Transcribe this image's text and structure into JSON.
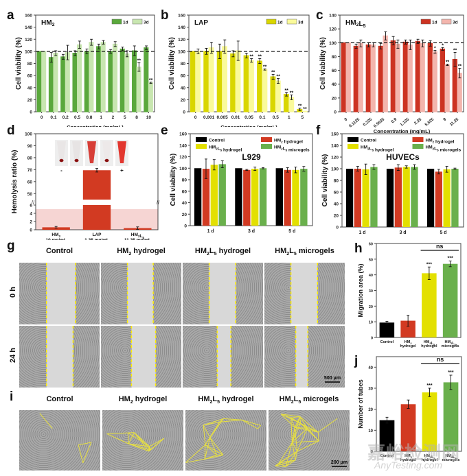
{
  "panel_letters": {
    "a": "a",
    "b": "b",
    "c": "c",
    "d": "d",
    "e": "e",
    "f": "f",
    "g": "g",
    "h": "h",
    "i": "i",
    "j": "j"
  },
  "colors": {
    "green_dark": "#5aa83c",
    "green_light": "#c8e6b0",
    "yellow_dark": "#d9d600",
    "yellow_light": "#fafa9a",
    "red_dark": "#cc3322",
    "red_light": "#f3b5ad",
    "black": "#000000",
    "red": "#d23a22",
    "yellow": "#e3e000",
    "green": "#6ab04c",
    "dash_yellow": "#ffee00"
  },
  "chart_data": [
    {
      "id": "a",
      "type": "bar",
      "title": "HM₂",
      "xlabel": "Concentration (mg/mL)",
      "ylabel": "Cell viability (%)",
      "ylim": [
        0,
        160
      ],
      "yticks": [
        0,
        20,
        40,
        60,
        80,
        100,
        120,
        140,
        160
      ],
      "reference_line": 100,
      "categories": [
        "0",
        "0.1",
        "0.2",
        "0.5",
        "0.8",
        "1",
        "2",
        "5",
        "8",
        "10"
      ],
      "series": [
        {
          "name": "1d",
          "values": [
            100,
            90,
            91,
            97,
            100,
            108,
            100,
            104,
            101,
            106
          ],
          "errors": [
            0,
            8,
            4,
            4,
            4,
            4,
            3,
            3,
            8,
            3
          ]
        },
        {
          "name": "3d",
          "values": [
            100,
            97,
            98,
            111,
            115,
            115,
            112,
            96,
            74,
            48
          ],
          "errors": [
            0,
            4,
            12,
            6,
            5,
            3,
            4,
            5,
            7,
            1
          ]
        }
      ],
      "annotations": [
        {
          "category": "8",
          "series": "3d",
          "text": "**"
        },
        {
          "category": "10",
          "series": "3d",
          "text": "**"
        }
      ],
      "legend": "top-right"
    },
    {
      "id": "b",
      "type": "bar",
      "title": "LAP",
      "xlabel": "Concentration (mg/mL)",
      "ylabel": "Cell viability (%)",
      "ylim": [
        0,
        160
      ],
      "yticks": [
        0,
        20,
        40,
        60,
        80,
        100,
        120,
        140,
        160
      ],
      "reference_line": 100,
      "categories": [
        "0",
        "0.001",
        "0.005",
        "0.01",
        "0.05",
        "0.1",
        "0.5",
        "1",
        "5"
      ],
      "series": [
        {
          "name": "1d",
          "values": [
            100,
            100,
            100,
            96,
            93,
            84,
            58,
            29,
            4
          ],
          "errors": [
            0,
            5,
            12,
            5,
            4,
            4,
            4,
            3,
            2
          ]
        },
        {
          "name": "3d",
          "values": [
            100,
            106,
            108,
            101,
            85,
            70,
            51,
            24,
            1
          ],
          "errors": [
            4,
            9,
            11,
            16,
            3,
            1,
            4,
            4,
            0
          ]
        }
      ],
      "annotations": [
        {
          "category": "0.05",
          "series": "3d",
          "text": "**"
        },
        {
          "category": "0.1",
          "series": "1d",
          "text": "**"
        },
        {
          "category": "0.1",
          "series": "3d",
          "text": "**"
        },
        {
          "category": "0.5",
          "series": "1d",
          "text": "**"
        },
        {
          "category": "0.5",
          "series": "3d",
          "text": "**"
        },
        {
          "category": "1",
          "series": "1d",
          "text": "**"
        },
        {
          "category": "1",
          "series": "3d",
          "text": "**"
        },
        {
          "category": "5",
          "series": "1d",
          "text": "**"
        },
        {
          "category": "5",
          "series": "3d",
          "text": "**"
        }
      ],
      "legend": "top-right"
    },
    {
      "id": "c",
      "type": "bar",
      "title": "HM₂L₅",
      "xlabel": "Concentration (mg/mL)",
      "ylabel": "Cell viability (%)",
      "ylim": [
        0,
        140
      ],
      "yticks": [
        0,
        20,
        40,
        60,
        80,
        100,
        120,
        140
      ],
      "reference_line": 100,
      "categories": [
        "0",
        "0.1125",
        "0.225",
        "0.5625",
        "0.9",
        "1.125",
        "2.25",
        "5.625",
        "9",
        "11.25"
      ],
      "series": [
        {
          "name": "1d",
          "values": [
            100,
            95,
            97,
            95,
            103,
            101,
            102,
            99,
            91,
            76
          ],
          "errors": [
            0,
            3,
            3,
            4,
            6,
            3,
            3,
            4,
            2,
            10
          ]
        },
        {
          "name": "3d",
          "values": [
            100,
            99,
            97,
            110,
            98,
            97,
            99,
            87,
            68,
            56
          ],
          "errors": [
            0,
            5,
            3,
            6,
            6,
            7,
            5,
            2,
            1,
            7
          ]
        }
      ],
      "annotations": [
        {
          "category": "5.625",
          "series": "3d",
          "text": "*"
        },
        {
          "category": "9",
          "series": "1d",
          "text": "*"
        },
        {
          "category": "9",
          "series": "3d",
          "text": "**"
        },
        {
          "category": "11.25",
          "series": "1d",
          "text": "**"
        },
        {
          "category": "11.25",
          "series": "3d",
          "text": "**"
        }
      ],
      "legend": "top-right"
    },
    {
      "id": "d",
      "type": "bar",
      "title": "",
      "xlabel": "",
      "ylabel": "Hemolysis ratio (%)",
      "ylim_lower": [
        0,
        6
      ],
      "ylim_upper": [
        45,
        100
      ],
      "yticks_lower": [
        0,
        2,
        4,
        6
      ],
      "yticks_upper": [
        50,
        60,
        70,
        80,
        90,
        100
      ],
      "categories": [
        "HM₂\n10 mg/mL",
        "LAP\n1.25 mg/mL",
        "HM₂L₅\n11.25 mg/mL"
      ],
      "values": [
        0.6,
        69.5,
        0.4
      ],
      "errors": [
        0.2,
        1.5,
        0.3
      ],
      "threshold_band": [
        0,
        5
      ],
      "inset_tube_labels": [
        "-",
        "",
        "",
        "",
        "+"
      ]
    },
    {
      "id": "e",
      "type": "bar",
      "title": "L929",
      "xlabel": "",
      "ylabel": "Cell viability (%)",
      "ylim": [
        0,
        160
      ],
      "yticks": [
        0,
        20,
        40,
        60,
        80,
        100,
        120,
        140,
        160
      ],
      "categories": [
        "1 d",
        "3 d",
        "5 d"
      ],
      "series": [
        {
          "name": "Control",
          "values": [
            100,
            100,
            100
          ],
          "errors": [
            0,
            0,
            0
          ]
        },
        {
          "name": "HM₂ hydrogel",
          "values": [
            99,
            97,
            97
          ],
          "errors": [
            17,
            1,
            4
          ]
        },
        {
          "name": "HM₂L₅ hydrogel",
          "values": [
            106,
            99,
            97
          ],
          "errors": [
            9,
            3,
            5
          ]
        },
        {
          "name": "HM₂L₅ microgels",
          "values": [
            107,
            100,
            99
          ],
          "errors": [
            6,
            1,
            4
          ]
        }
      ],
      "legend": "top"
    },
    {
      "id": "f",
      "type": "bar",
      "title": "HUVECs",
      "xlabel": "",
      "ylabel": "Cell viability (%)",
      "ylim": [
        0,
        160
      ],
      "yticks": [
        0,
        20,
        40,
        60,
        80,
        100,
        120,
        140,
        160
      ],
      "categories": [
        "1 d",
        "3 d",
        "5 d"
      ],
      "series": [
        {
          "name": "Control",
          "values": [
            100,
            100,
            100
          ],
          "errors": [
            0,
            0,
            0
          ]
        },
        {
          "name": "HM₂ hydrogel",
          "values": [
            100,
            102,
            95
          ],
          "errors": [
            4,
            5,
            4
          ]
        },
        {
          "name": "HM₂L₅ hydrogel",
          "values": [
            99,
            103,
            99
          ],
          "errors": [
            9,
            2,
            5
          ]
        },
        {
          "name": "HM₂L₅ microgels",
          "values": [
            103,
            103,
            100
          ],
          "errors": [
            4,
            4,
            1
          ]
        }
      ],
      "legend": "top"
    },
    {
      "id": "h",
      "type": "bar",
      "title": "",
      "xlabel": "",
      "ylabel": "Migration area (%)",
      "ylim": [
        0,
        60
      ],
      "yticks": [
        0,
        10,
        20,
        30,
        40,
        50,
        60
      ],
      "categories": [
        "Control",
        "HM₂\nhydrogel",
        "HM₂L₅\nhydrogel",
        "HM₂L₅\nmicrogels"
      ],
      "values": [
        9.5,
        10.7,
        41,
        47
      ],
      "errors": [
        0.8,
        3.5,
        4,
        1.8
      ],
      "annotations": [
        "",
        "",
        "***",
        "***"
      ],
      "bracket": {
        "from": 2,
        "to": 3,
        "text": "ns"
      }
    },
    {
      "id": "j",
      "type": "bar",
      "title": "",
      "xlabel": "",
      "ylabel": "Number of tubes",
      "ylim": [
        0,
        45
      ],
      "yticks": [
        0,
        10,
        20,
        30,
        40
      ],
      "categories": [
        "Control",
        "HM₂\nhydrogel",
        "HM₂L₅\nhydrogel",
        "HM₂L₅\nmicrogels"
      ],
      "values": [
        14.8,
        22.4,
        28,
        32.8
      ],
      "errors": [
        1.4,
        2,
        2,
        3.4
      ],
      "annotations": [
        "",
        "",
        "***",
        "***"
      ],
      "bracket": {
        "from": 2,
        "to": 3,
        "text": "ns"
      }
    }
  ],
  "panel_g": {
    "col_titles": [
      "Control",
      "HM₂ hydrogel",
      "HM₂L₅ hydrogel",
      "HM₂L₅ microgels"
    ],
    "row_labels": [
      "0 h",
      "24 h"
    ],
    "scale_bar": "500 μm"
  },
  "panel_i": {
    "col_titles": [
      "Control",
      "HM₂ hydrogel",
      "HM₂L₅ hydrogel",
      "HM₂L₅ microgels"
    ],
    "scale_bar": "200 μm"
  },
  "watermark": {
    "line1": "嘉峪检测网",
    "line2": "AnyTesting.com"
  }
}
